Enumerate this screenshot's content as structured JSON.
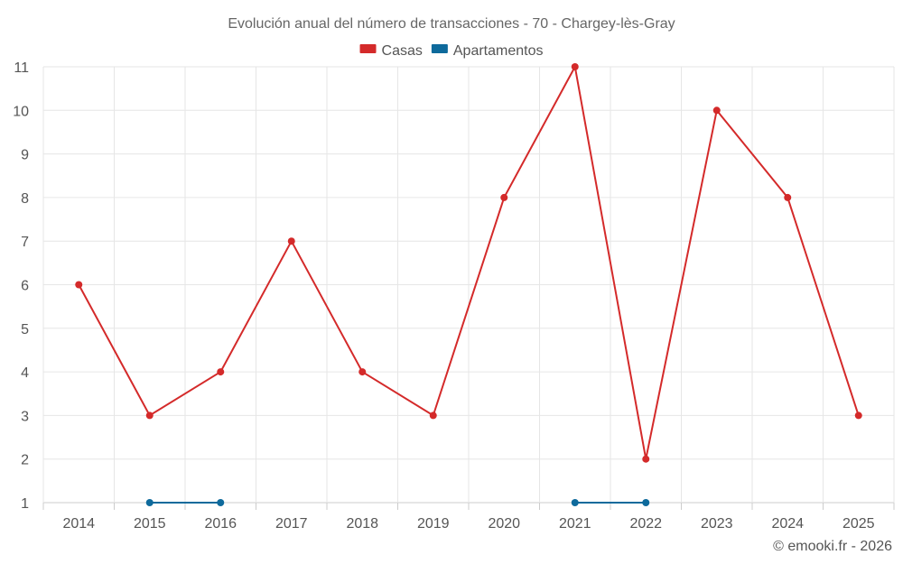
{
  "chart_data": {
    "type": "line",
    "title": "Evolución anual del número de transacciones - 70 - Chargey-lès-Gray",
    "xlabel": "",
    "ylabel": "",
    "categories": [
      "2014",
      "2015",
      "2016",
      "2017",
      "2018",
      "2019",
      "2020",
      "2021",
      "2022",
      "2023",
      "2024",
      "2025"
    ],
    "ylim": [
      1,
      11
    ],
    "yticks": [
      1,
      2,
      3,
      4,
      5,
      6,
      7,
      8,
      9,
      10,
      11
    ],
    "grid": true,
    "legend_position": "top-center",
    "series": [
      {
        "name": "Casas",
        "color": "#d42a2a",
        "values": [
          6,
          3,
          4,
          7,
          4,
          3,
          8,
          11,
          2,
          10,
          8,
          3
        ]
      },
      {
        "name": "Apartamentos",
        "color": "#0e6a9c",
        "values": [
          null,
          1,
          1,
          null,
          null,
          null,
          null,
          1,
          1,
          null,
          null,
          null
        ]
      }
    ]
  },
  "credit": "© emooki.fr - 2026"
}
